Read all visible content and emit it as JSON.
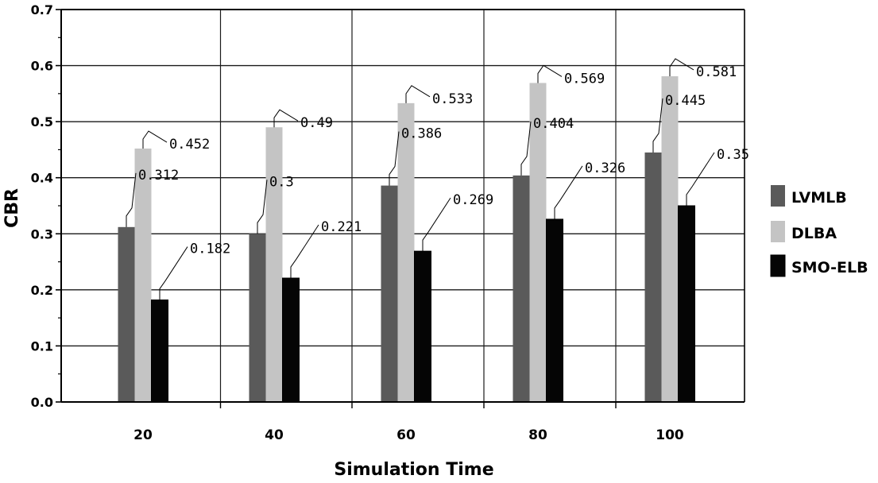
{
  "chart_data": {
    "type": "bar",
    "title": "",
    "xlabel": "Simulation Time",
    "ylabel": "CBR",
    "categories": [
      "20",
      "40",
      "60",
      "80",
      "100"
    ],
    "ylim": [
      0,
      0.7
    ],
    "yticks": [
      "0.0",
      "0.1",
      "0.2",
      "0.3",
      "0.4",
      "0.5",
      "0.6",
      "0.7"
    ],
    "grid": true,
    "legend_position": "right",
    "series": [
      {
        "name": "LVMLB",
        "color": "#5a5a5a",
        "values": [
          0.312,
          0.3,
          0.386,
          0.404,
          0.445
        ],
        "labels": [
          "0.312",
          "0.3",
          "0.386",
          "0.404",
          "0.445"
        ]
      },
      {
        "name": "DLBA",
        "color": "#c4c4c4",
        "values": [
          0.452,
          0.49,
          0.533,
          0.569,
          0.581
        ],
        "labels": [
          "0.452",
          "0.49",
          "0.533",
          "0.569",
          "0.581"
        ]
      },
      {
        "name": "SMO-ELB",
        "color": "#050505",
        "values": [
          0.182,
          0.221,
          0.269,
          0.326,
          0.35
        ],
        "labels": [
          "0.182",
          "0.221",
          "0.269",
          "0.326",
          "0.35"
        ]
      }
    ]
  }
}
